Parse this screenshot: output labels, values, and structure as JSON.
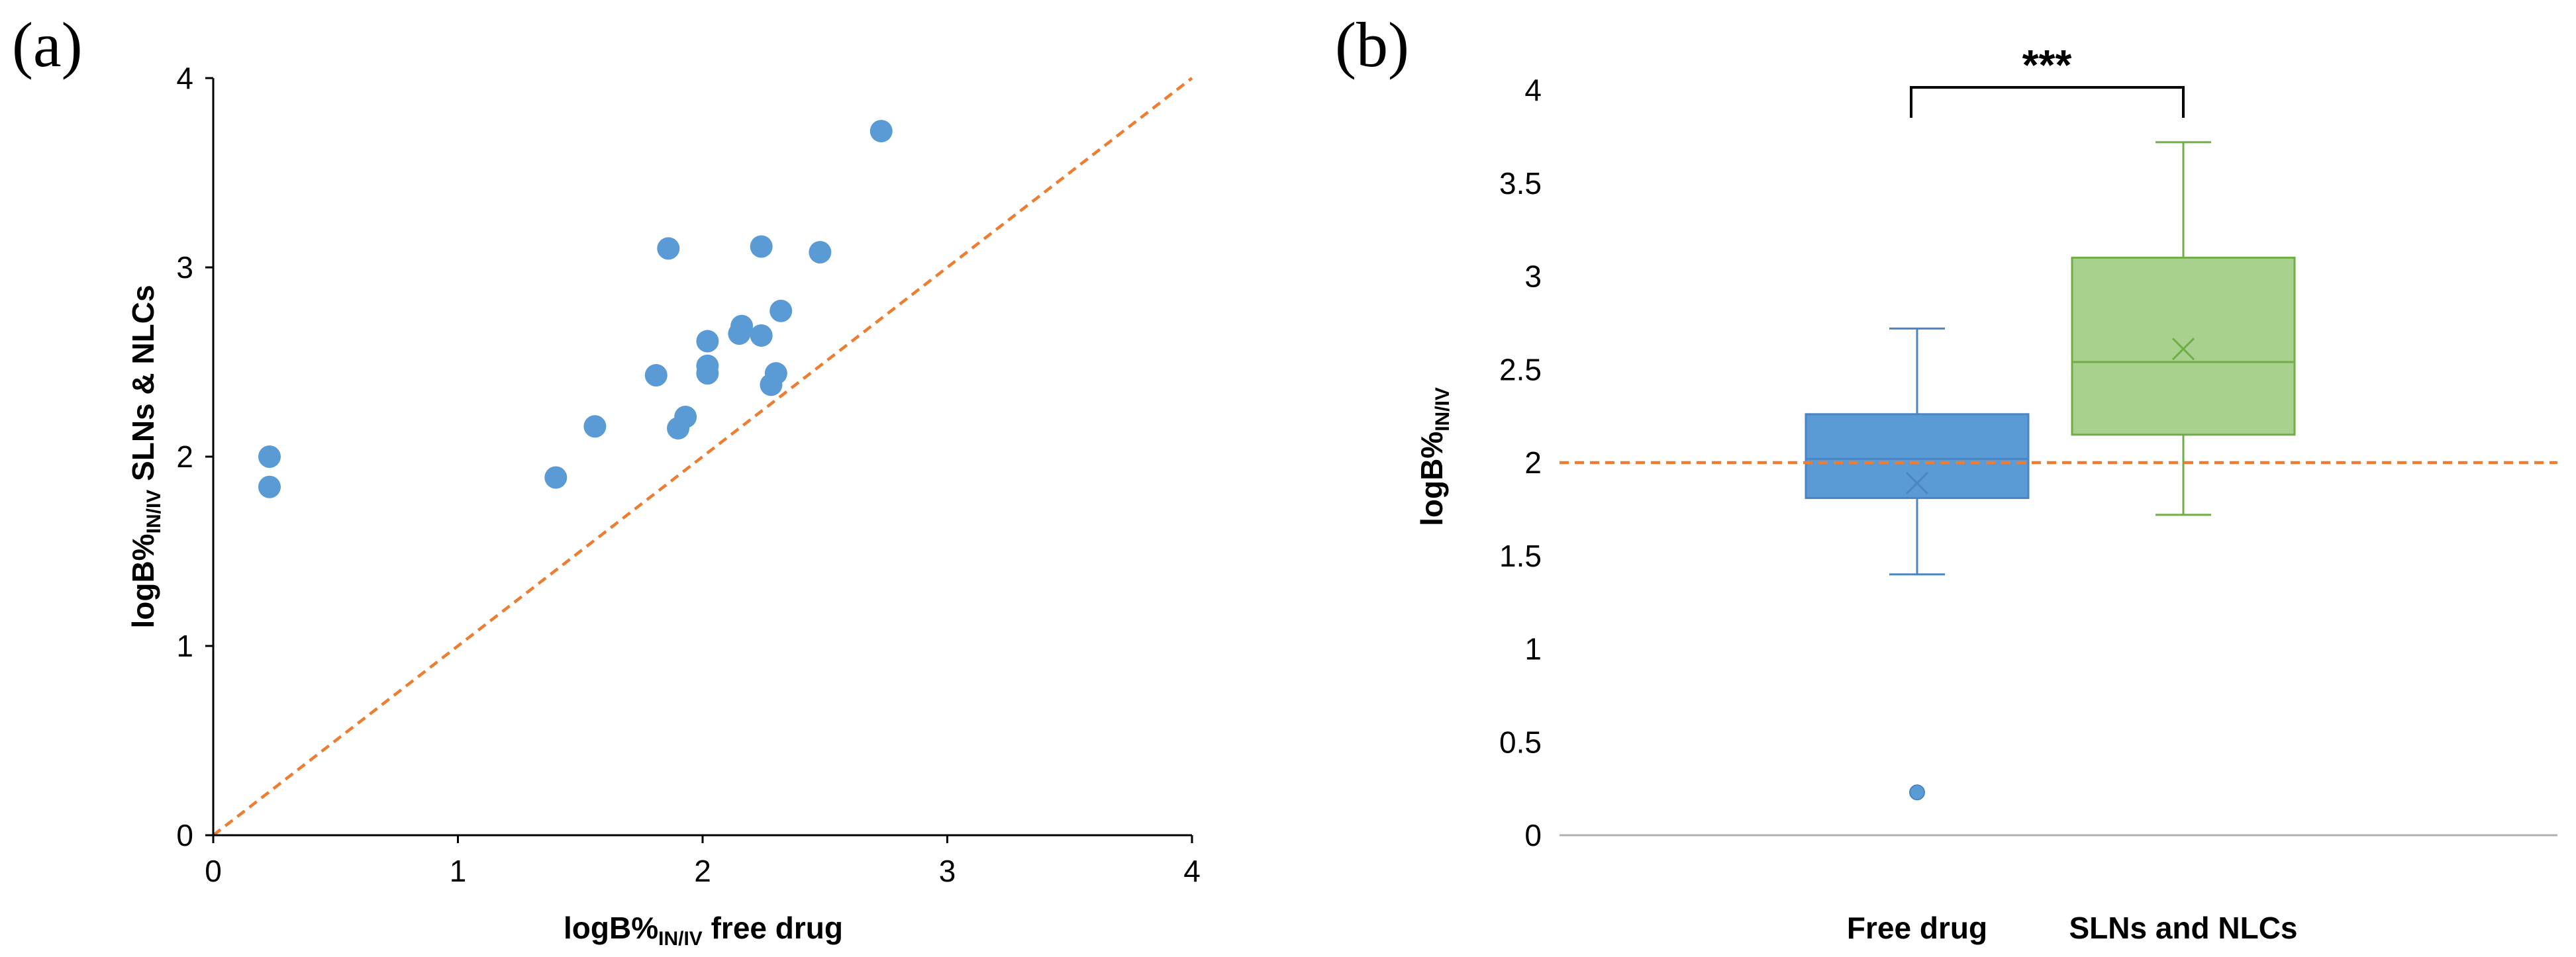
{
  "chart_data": [
    {
      "type": "scatter",
      "panel_label": "(a)",
      "xlabel": {
        "main": "logB%",
        "sub": "IN/IV",
        "suffix": " free drug"
      },
      "ylabel": {
        "main": "logB%",
        "sub": "IN/IV",
        "suffix": " SLNs & NLCs"
      },
      "xlim": [
        0,
        4
      ],
      "ylim": [
        0,
        4
      ],
      "xticks": [
        0,
        1,
        2,
        3,
        4
      ],
      "yticks": [
        0,
        1,
        2,
        3,
        4
      ],
      "grid": false,
      "marker_color": "#5b9bd5",
      "reference_line": {
        "label": "y = x",
        "from": [
          0,
          0
        ],
        "to": [
          4,
          4
        ],
        "color": "#ed7d31",
        "style": "dashed"
      },
      "points": [
        {
          "x": 0.23,
          "y": 2.0
        },
        {
          "x": 0.23,
          "y": 1.84
        },
        {
          "x": 1.4,
          "y": 1.89
        },
        {
          "x": 1.56,
          "y": 2.16
        },
        {
          "x": 1.81,
          "y": 2.43
        },
        {
          "x": 1.86,
          "y": 3.1
        },
        {
          "x": 1.9,
          "y": 2.15
        },
        {
          "x": 1.93,
          "y": 2.21
        },
        {
          "x": 2.02,
          "y": 2.61
        },
        {
          "x": 2.02,
          "y": 2.48
        },
        {
          "x": 2.02,
          "y": 2.44
        },
        {
          "x": 2.15,
          "y": 2.65
        },
        {
          "x": 2.16,
          "y": 2.69
        },
        {
          "x": 2.24,
          "y": 2.64
        },
        {
          "x": 2.24,
          "y": 3.11
        },
        {
          "x": 2.28,
          "y": 2.38
        },
        {
          "x": 2.3,
          "y": 2.44
        },
        {
          "x": 2.32,
          "y": 2.77
        },
        {
          "x": 2.48,
          "y": 3.08
        },
        {
          "x": 2.73,
          "y": 3.72
        }
      ]
    },
    {
      "type": "box",
      "panel_label": "(b)",
      "ylabel": {
        "main": "logB%",
        "sub": "IN/IV",
        "suffix": ""
      },
      "ylim": [
        0,
        4
      ],
      "yticks": [
        "0",
        "0.5",
        "1",
        "1.5",
        "2",
        "2.5",
        "3",
        "3.5",
        "4"
      ],
      "grid": false,
      "reference_line": {
        "y": 2.0,
        "color": "#ed7d31",
        "style": "dashed"
      },
      "significance": "***",
      "groups": [
        {
          "name": "Free drug",
          "min": 1.4,
          "q1": 1.81,
          "median": 2.02,
          "q3": 2.26,
          "max": 2.72,
          "mean": 1.89,
          "outliers": [
            0.23
          ],
          "fill": "#5b9bd5",
          "stroke": "#4a86c5"
        },
        {
          "name": "SLNs and NLCs",
          "min": 1.72,
          "q1": 2.15,
          "median": 2.54,
          "q3": 3.1,
          "max": 3.72,
          "mean": 2.61,
          "outliers": [],
          "fill": "#a9d18e",
          "stroke": "#70ad47"
        }
      ]
    }
  ]
}
